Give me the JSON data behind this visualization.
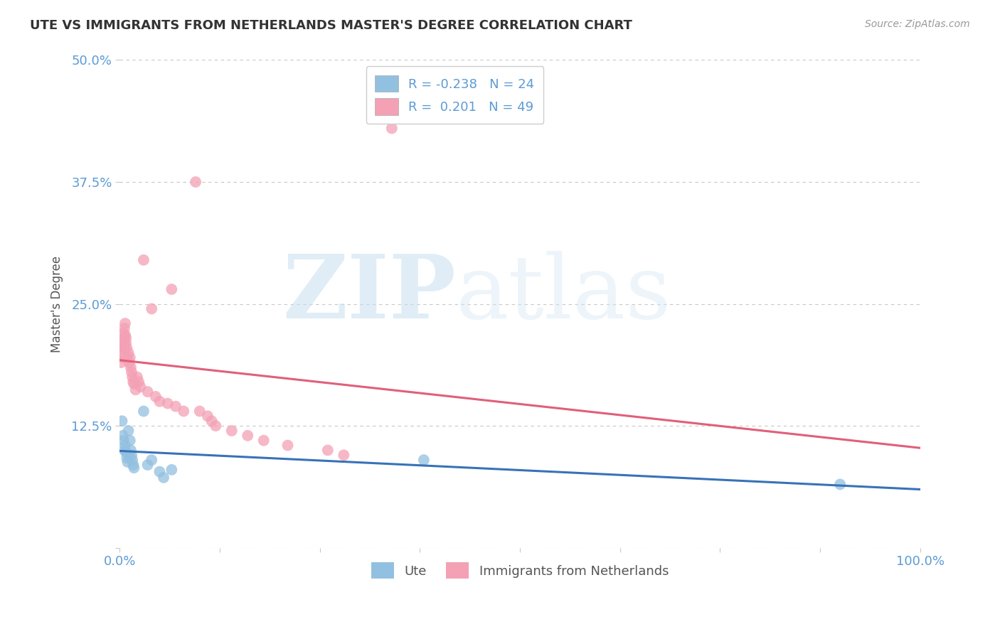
{
  "title": "UTE VS IMMIGRANTS FROM NETHERLANDS MASTER'S DEGREE CORRELATION CHART",
  "source": "Source: ZipAtlas.com",
  "tick_color": "#5b9bd5",
  "ylabel": "Master's Degree",
  "xlim": [
    0,
    1.0
  ],
  "ylim": [
    0,
    0.5
  ],
  "background_color": "#ffffff",
  "grid_color": "#c8c8c8",
  "blue_label": "Ute",
  "pink_label": "Immigrants from Netherlands",
  "blue_R": "-0.238",
  "blue_N": "24",
  "pink_R": "0.201",
  "pink_N": "49",
  "blue_scatter_x": [
    0.003,
    0.004,
    0.005,
    0.006,
    0.007,
    0.008,
    0.009,
    0.01,
    0.011,
    0.012,
    0.013,
    0.014,
    0.015,
    0.016,
    0.017,
    0.018,
    0.03,
    0.035,
    0.04,
    0.05,
    0.055,
    0.065,
    0.38,
    0.9
  ],
  "blue_scatter_y": [
    0.13,
    0.115,
    0.11,
    0.1,
    0.105,
    0.098,
    0.092,
    0.088,
    0.12,
    0.095,
    0.11,
    0.1,
    0.095,
    0.09,
    0.085,
    0.082,
    0.14,
    0.085,
    0.09,
    0.078,
    0.072,
    0.08,
    0.09,
    0.065
  ],
  "pink_scatter_x": [
    0.002,
    0.003,
    0.003,
    0.004,
    0.004,
    0.005,
    0.005,
    0.006,
    0.006,
    0.006,
    0.007,
    0.007,
    0.008,
    0.008,
    0.009,
    0.01,
    0.011,
    0.012,
    0.013,
    0.014,
    0.015,
    0.016,
    0.017,
    0.018,
    0.02,
    0.022,
    0.024,
    0.026,
    0.03,
    0.035,
    0.04,
    0.045,
    0.05,
    0.06,
    0.065,
    0.07,
    0.08,
    0.095,
    0.1,
    0.11,
    0.115,
    0.12,
    0.14,
    0.16,
    0.18,
    0.21,
    0.26,
    0.28,
    0.34
  ],
  "pink_scatter_y": [
    0.19,
    0.21,
    0.2,
    0.205,
    0.195,
    0.22,
    0.21,
    0.215,
    0.225,
    0.205,
    0.23,
    0.218,
    0.215,
    0.21,
    0.205,
    0.195,
    0.2,
    0.19,
    0.195,
    0.185,
    0.18,
    0.175,
    0.17,
    0.168,
    0.162,
    0.175,
    0.17,
    0.165,
    0.295,
    0.16,
    0.245,
    0.155,
    0.15,
    0.148,
    0.265,
    0.145,
    0.14,
    0.375,
    0.14,
    0.135,
    0.13,
    0.125,
    0.12,
    0.115,
    0.11,
    0.105,
    0.1,
    0.095,
    0.43
  ],
  "blue_color": "#92c0e0",
  "pink_color": "#f4a0b5",
  "blue_line_color": "#3872b8",
  "pink_line_color": "#e0607a",
  "dashed_line_color": "#d4b0b8",
  "watermark_zip": "ZIP",
  "watermark_atlas": "atlas"
}
